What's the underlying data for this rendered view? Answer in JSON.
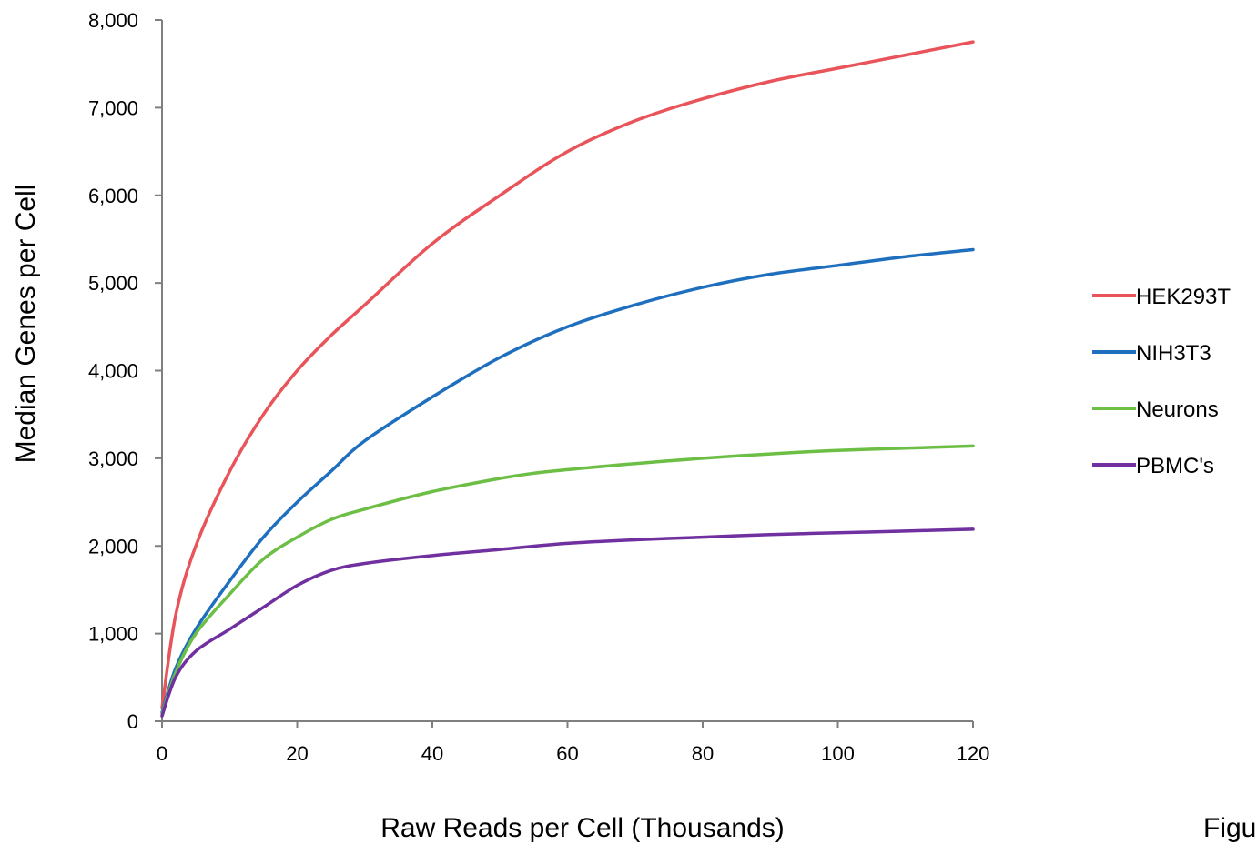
{
  "chart_data": {
    "type": "line",
    "title": "",
    "xlabel": "Raw Reads per Cell (Thousands)",
    "ylabel": "Median Genes per Cell",
    "xlim": [
      0,
      120
    ],
    "ylim": [
      0,
      8000
    ],
    "x_ticks": [
      0,
      20,
      40,
      60,
      80,
      100,
      120
    ],
    "x_tick_labels": [
      "0",
      "20",
      "40",
      "60",
      "80",
      "100",
      "120"
    ],
    "y_ticks": [
      0,
      1000,
      2000,
      3000,
      4000,
      5000,
      6000,
      7000,
      8000
    ],
    "y_tick_labels": [
      "0",
      "1,000",
      "2,000",
      "3,000",
      "4,000",
      "5,000",
      "6,000",
      "7,000",
      "8,000"
    ],
    "grid": false,
    "legend_position": "right",
    "series": [
      {
        "name": "HEK293T",
        "color": "#e8545a",
        "x": [
          0,
          2,
          5,
          10,
          15,
          20,
          25,
          30,
          40,
          50,
          60,
          70,
          80,
          90,
          100,
          110,
          120
        ],
        "y": [
          150,
          1200,
          2000,
          2850,
          3500,
          4000,
          4400,
          4750,
          5450,
          6000,
          6500,
          6850,
          7100,
          7300,
          7450,
          7600,
          7750
        ]
      },
      {
        "name": "NIH3T3",
        "color": "#1f6fbf",
        "x": [
          0,
          2,
          5,
          10,
          15,
          20,
          25,
          30,
          40,
          50,
          60,
          70,
          80,
          90,
          100,
          110,
          120
        ],
        "y": [
          100,
          600,
          1050,
          1600,
          2100,
          2500,
          2850,
          3200,
          3700,
          4150,
          4500,
          4750,
          4950,
          5100,
          5200,
          5300,
          5380
        ]
      },
      {
        "name": "Neurons",
        "color": "#6cbe45",
        "x": [
          0,
          2,
          5,
          10,
          15,
          20,
          25,
          30,
          40,
          50,
          55,
          60,
          70,
          80,
          90,
          100,
          110,
          120
        ],
        "y": [
          80,
          550,
          1000,
          1450,
          1850,
          2100,
          2300,
          2420,
          2620,
          2770,
          2830,
          2870,
          2940,
          3000,
          3050,
          3090,
          3115,
          3140
        ]
      },
      {
        "name": "PBMC's",
        "color": "#7030a0",
        "x": [
          0,
          2,
          5,
          10,
          15,
          20,
          25,
          30,
          40,
          50,
          60,
          70,
          80,
          90,
          100,
          110,
          120
        ],
        "y": [
          60,
          500,
          800,
          1050,
          1300,
          1550,
          1720,
          1800,
          1890,
          1960,
          2030,
          2070,
          2100,
          2130,
          2150,
          2170,
          2190
        ]
      }
    ]
  },
  "clipped_text": "Figu"
}
